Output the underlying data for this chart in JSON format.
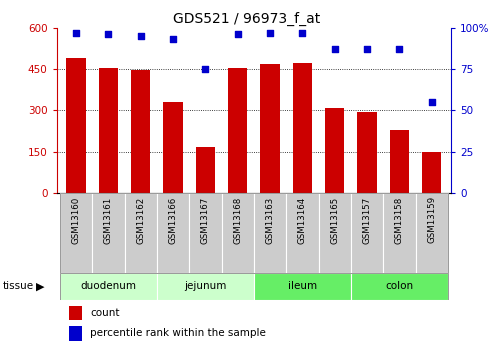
{
  "title": "GDS521 / 96973_f_at",
  "samples": [
    "GSM13160",
    "GSM13161",
    "GSM13162",
    "GSM13166",
    "GSM13167",
    "GSM13168",
    "GSM13163",
    "GSM13164",
    "GSM13165",
    "GSM13157",
    "GSM13158",
    "GSM13159"
  ],
  "counts": [
    490,
    455,
    448,
    332,
    168,
    453,
    468,
    473,
    310,
    293,
    230,
    148
  ],
  "percentiles": [
    97,
    96,
    95,
    93,
    75,
    96,
    97,
    97,
    87,
    87,
    87,
    55
  ],
  "tissues": [
    {
      "name": "duodenum",
      "start": 0,
      "end": 3,
      "color": "#ccffcc"
    },
    {
      "name": "jejunum",
      "start": 3,
      "end": 6,
      "color": "#ccffcc"
    },
    {
      "name": "ileum",
      "start": 6,
      "end": 9,
      "color": "#66ee66"
    },
    {
      "name": "colon",
      "start": 9,
      "end": 12,
      "color": "#66ee66"
    }
  ],
  "bar_color": "#cc0000",
  "dot_color": "#0000cc",
  "left_ylim": [
    0,
    600
  ],
  "left_yticks": [
    0,
    150,
    300,
    450,
    600
  ],
  "right_ylim": [
    0,
    100
  ],
  "right_yticks": [
    0,
    25,
    50,
    75,
    100
  ],
  "right_yticklabels": [
    "0",
    "25",
    "50",
    "75",
    "100%"
  ],
  "grid_lines": [
    150,
    300,
    450
  ],
  "tick_color_left": "#cc0000",
  "tick_color_right": "#0000cc",
  "bg_xtick": "#cccccc",
  "legend_items": [
    {
      "color": "#cc0000",
      "label": "count"
    },
    {
      "color": "#0000cc",
      "label": "percentile rank within the sample"
    }
  ]
}
